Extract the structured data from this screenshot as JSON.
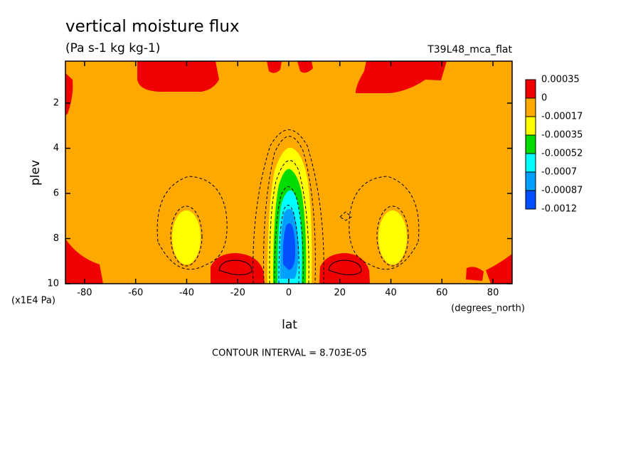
{
  "chart_data": {
    "type": "contour",
    "title": "vertical moisture flux",
    "subtitle": "(Pa s-1 kg kg-1)",
    "run_label": "T39L48_mca_flat",
    "x_label": "lat",
    "x_unit": "(degrees_north)",
    "y_label": "plev",
    "y_unit": "(x1E4 Pa)",
    "xlim": [
      -87.5,
      87.5
    ],
    "xticks": [
      -80,
      -60,
      -40,
      -20,
      0,
      20,
      40,
      60,
      80
    ],
    "ylim": [
      10,
      0.14
    ],
    "yticks": [
      2,
      4,
      6,
      8,
      10
    ],
    "levels": [
      0.00035,
      0,
      -0.00017,
      -0.00035,
      -0.00052,
      -0.0007,
      -0.00087,
      -0.0012
    ],
    "colors": [
      "#f00000",
      "#ffa800",
      "#ffff00",
      "#00dc00",
      "#00ffff",
      "#00a0ff",
      "#0050ff"
    ],
    "annotation": "CONTOUR INTERVAL = 8.703E-05"
  }
}
